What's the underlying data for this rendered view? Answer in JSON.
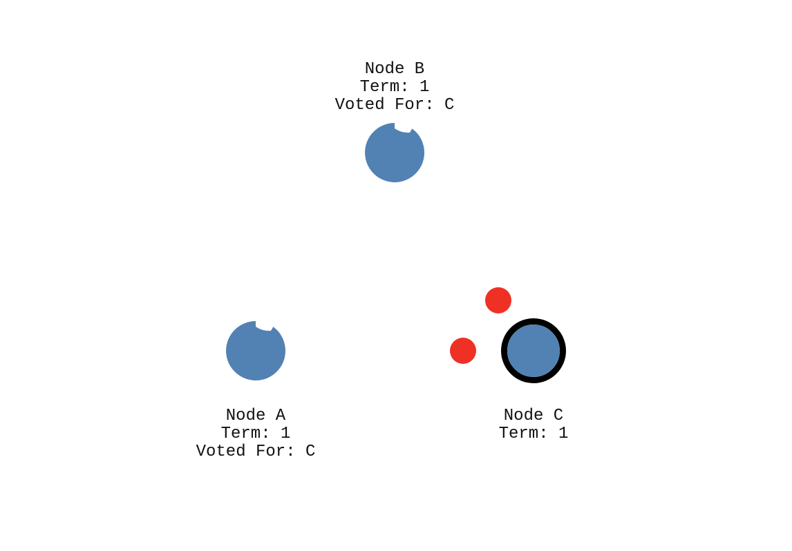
{
  "colors": {
    "node_fill": "#5282b3",
    "message_fill": "#ee3124",
    "leader_ring": "#000000",
    "text": "#111111"
  },
  "nodes": [
    {
      "id": "b",
      "name": "Node B",
      "term": "Term: 1",
      "voted_for": "Voted For: C",
      "role": "follower",
      "election_timer_fraction": 0.1
    },
    {
      "id": "a",
      "name": "Node A",
      "term": "Term: 1",
      "voted_for": "Voted For: C",
      "role": "follower",
      "election_timer_fraction": 0.1
    },
    {
      "id": "c",
      "name": "Node C",
      "term": "Term: 1",
      "voted_for": "",
      "role": "leader",
      "election_timer_fraction": 0
    }
  ],
  "messages": [
    {
      "id": "msg-1"
    },
    {
      "id": "msg-2"
    }
  ]
}
